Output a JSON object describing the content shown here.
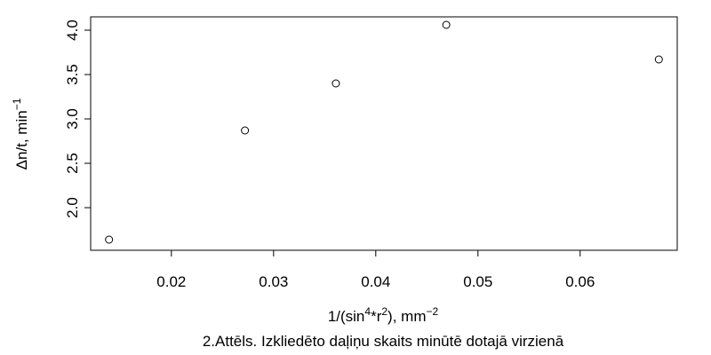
{
  "chart_data": {
    "type": "scatter",
    "title": "",
    "xlabel": {
      "base": "1/(sin",
      "sup1": "4",
      "mid": "*r",
      "sup2": "2",
      "tail": "), mm",
      "sup3": "−2"
    },
    "ylabel": {
      "base": "Δn/t, min",
      "sup": "−1"
    },
    "caption": "2.Attēls. Izkliedēto daļiņu skaits minūtē dotajā virzienā",
    "xlim": [
      0.0121,
      0.0695
    ],
    "ylim": [
      1.52,
      4.15
    ],
    "xticks": [
      0.02,
      0.03,
      0.04,
      0.05,
      0.06
    ],
    "xtick_labels": [
      "0.02",
      "0.03",
      "0.04",
      "0.05",
      "0.06"
    ],
    "yticks": [
      2.0,
      2.5,
      3.0,
      3.5,
      4.0
    ],
    "ytick_labels": [
      "2.0",
      "2.5",
      "3.0",
      "3.5",
      "4.0"
    ],
    "points": [
      {
        "x": 0.0139,
        "y": 1.64
      },
      {
        "x": 0.0272,
        "y": 2.87
      },
      {
        "x": 0.0361,
        "y": 3.4
      },
      {
        "x": 0.0469,
        "y": 4.06
      },
      {
        "x": 0.0677,
        "y": 3.67
      }
    ],
    "grid": false,
    "legend": "none"
  }
}
